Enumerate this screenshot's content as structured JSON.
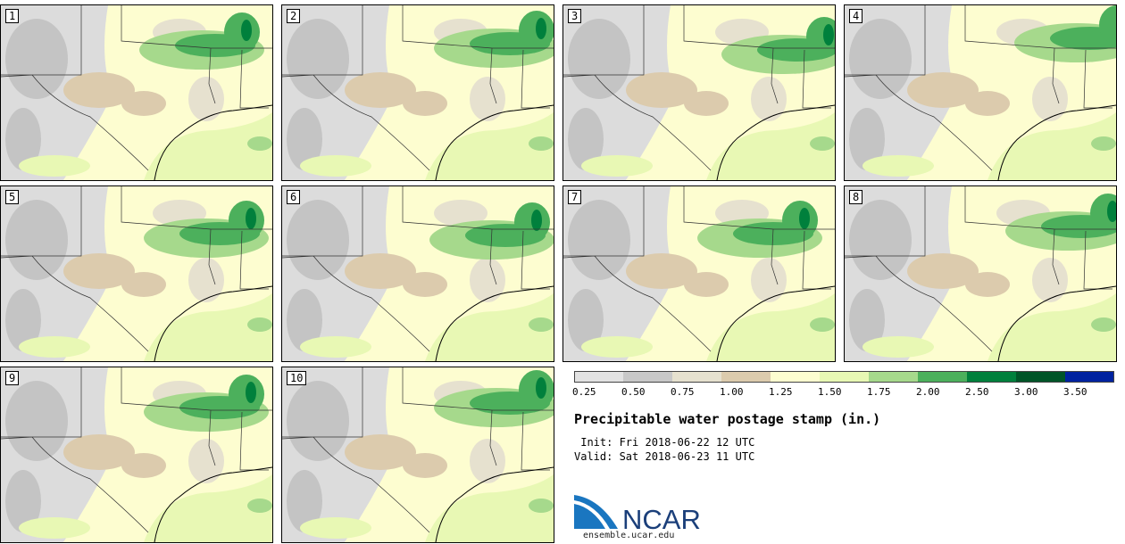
{
  "members": [
    "1",
    "2",
    "3",
    "4",
    "5",
    "6",
    "7",
    "8",
    "9",
    "10"
  ],
  "colorbar": {
    "ticks": [
      "0.25",
      "0.50",
      "0.75",
      "1.00",
      "1.25",
      "1.50",
      "1.75",
      "2.00",
      "2.50",
      "3.00",
      "3.50"
    ],
    "colors": [
      "#e2e2e2",
      "#c8c8c8",
      "#e6e1cf",
      "#dccbad",
      "#fdfdd0",
      "#e8f8b4",
      "#a6d98c",
      "#4cb05c",
      "#00803c",
      "#005528",
      "#0022a0"
    ]
  },
  "title": "Precipitable water postage stamp (in.)",
  "init_text": " Init: Fri 2018-06-22 12 UTC",
  "valid_text": "Valid: Sat 2018-06-23 11 UTC",
  "logo": {
    "name": "NCAR",
    "url": "ensemble.ucar.edu"
  }
}
